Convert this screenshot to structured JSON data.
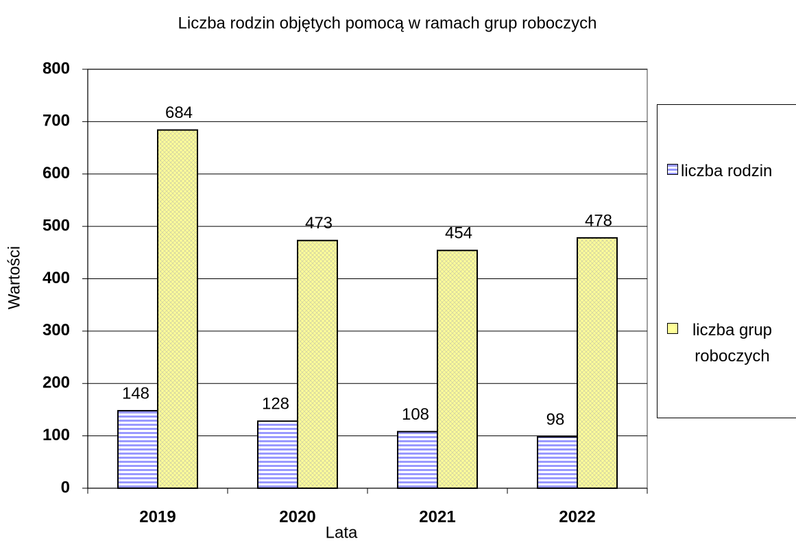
{
  "chart_data": {
    "type": "bar",
    "title": "Liczba rodzin objętych pomocą w ramach grup roboczych",
    "x_label": "Lata",
    "y_label": "Wartości",
    "categories": [
      "2019",
      "2020",
      "2021",
      "2022"
    ],
    "series": [
      {
        "name": "liczba rodzin",
        "color": "#9999ff",
        "values": [
          148,
          128,
          108,
          98
        ]
      },
      {
        "name": "liczba grup roboczych",
        "color": "#ffff99",
        "values": [
          684,
          473,
          454,
          478
        ]
      }
    ],
    "ylim": [
      0,
      800
    ],
    "yticks": [
      0,
      100,
      200,
      300,
      400,
      500,
      600,
      700,
      800
    ],
    "grid": true,
    "legend": "right"
  }
}
